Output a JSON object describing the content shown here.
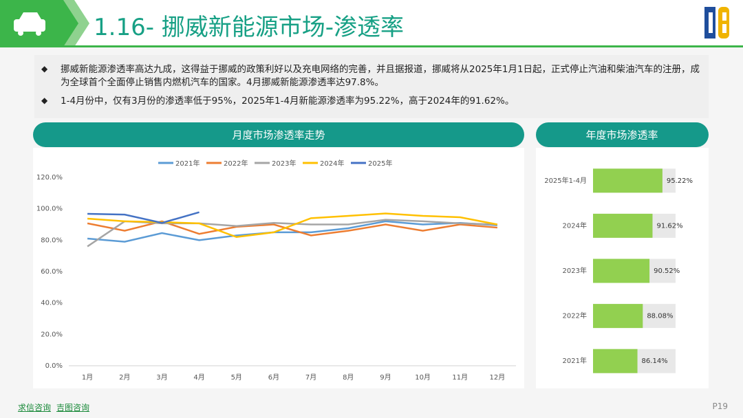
{
  "header": {
    "title": "1.16- 挪威新能源市场-渗透率"
  },
  "bullets": [
    "挪威新能源渗透率高达九成，这得益于挪威的政策利好以及充电网络的完善，并且据报道，挪威将从2025年1月1日起，正式停止汽油和柴油汽车的注册，成为全球首个全面停止销售内燃机汽车的国家。4月挪威新能源渗透率达97.8%。",
    "1-4月份中，仅有3月份的渗透率低于95%，2025年1-4月新能源渗透率为95.22%，高于2024年的91.62%。"
  ],
  "footer": {
    "links": [
      "求信咨询",
      "吉图咨询"
    ],
    "page": "P19"
  },
  "chart_data": [
    {
      "type": "line",
      "title": "月度市场渗透率走势",
      "categories": [
        "1月",
        "2月",
        "3月",
        "4月",
        "5月",
        "6月",
        "7月",
        "8月",
        "9月",
        "10月",
        "11月",
        "12月"
      ],
      "ylim": [
        0,
        120
      ],
      "yticks": [
        {
          "value": 0,
          "label": "0.0%"
        },
        {
          "value": 20,
          "label": "20.0%"
        },
        {
          "value": 40,
          "label": "40.0%"
        },
        {
          "value": 60,
          "label": "60.0%"
        },
        {
          "value": 80,
          "label": "80.0%"
        },
        {
          "value": 100,
          "label": "100.0%"
        },
        {
          "value": 120,
          "label": "120.0%"
        }
      ],
      "grid": false,
      "legend": "top",
      "series": [
        {
          "name": "2021年",
          "color": "#5b9bd5",
          "values": [
            81,
            79,
            84.5,
            80,
            83,
            85,
            85,
            87.6,
            92,
            90,
            91,
            89.5
          ]
        },
        {
          "name": "2022年",
          "color": "#ed7d31",
          "values": [
            90.7,
            86,
            92,
            84,
            88.5,
            90,
            83,
            86,
            90,
            86,
            90,
            88
          ]
        },
        {
          "name": "2023年",
          "color": "#a5a5a5",
          "values": [
            76,
            92,
            90.7,
            90.7,
            89,
            91,
            90,
            90,
            93,
            92,
            90.7,
            90
          ]
        },
        {
          "name": "2024年",
          "color": "#ffc000",
          "values": [
            93.7,
            92,
            91.5,
            90.7,
            82,
            85,
            94,
            95.5,
            97,
            95.5,
            94.6,
            90
          ]
        },
        {
          "name": "2025年",
          "color": "#4472c4",
          "values": [
            96.8,
            96.3,
            91,
            97.8,
            null,
            null,
            null,
            null,
            null,
            null,
            null,
            null
          ]
        }
      ]
    },
    {
      "type": "hbar",
      "title": "年度市场渗透率",
      "categories": [
        "2025年1-4月",
        "2024年",
        "2023年",
        "2022年",
        "2021年"
      ],
      "values": [
        95.22,
        91.62,
        90.52,
        88.08,
        86.14
      ],
      "value_labels": [
        "95.22%",
        "91.62%",
        "90.52%",
        "88.08%",
        "86.14%"
      ],
      "color": "#92d050",
      "xlim": [
        70,
        100
      ]
    }
  ]
}
